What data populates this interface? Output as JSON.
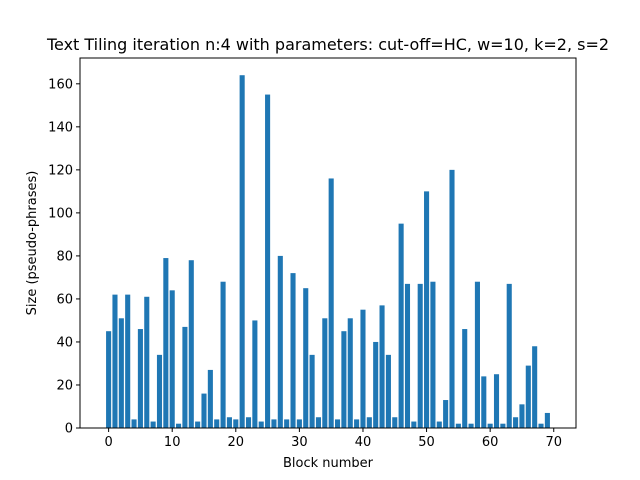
{
  "chart_data": {
    "type": "bar",
    "title": "Text Tiling iteration n:4 with parameters: cut-off=HC, w=10, k=2, s=2",
    "xlabel": "Block number",
    "ylabel": "Size (pseudo-phrases)",
    "xlim": [
      -4.5,
      73.5
    ],
    "ylim": [
      0,
      172
    ],
    "xticks": [
      0,
      10,
      20,
      30,
      40,
      50,
      60,
      70
    ],
    "yticks": [
      0,
      20,
      40,
      60,
      80,
      100,
      120,
      140,
      160
    ],
    "bar_color": "#1f77b4",
    "grid": false,
    "x": [
      0,
      1,
      2,
      3,
      4,
      5,
      6,
      7,
      8,
      9,
      10,
      11,
      12,
      13,
      14,
      15,
      16,
      17,
      18,
      19,
      20,
      21,
      22,
      23,
      24,
      25,
      26,
      27,
      28,
      29,
      30,
      31,
      32,
      33,
      34,
      35,
      36,
      37,
      38,
      39,
      40,
      41,
      42,
      43,
      44,
      45,
      46,
      47,
      48,
      49,
      50,
      51,
      52,
      53,
      54,
      55,
      56,
      57,
      58,
      59,
      60,
      61,
      62,
      63,
      64,
      65,
      66,
      67,
      68,
      69
    ],
    "values": [
      45,
      62,
      51,
      62,
      4,
      46,
      61,
      3,
      34,
      79,
      64,
      2,
      47,
      78,
      3,
      16,
      27,
      4,
      68,
      5,
      4,
      164,
      5,
      50,
      3,
      155,
      4,
      80,
      4,
      72,
      4,
      65,
      34,
      5,
      51,
      116,
      4,
      45,
      51,
      4,
      55,
      5,
      40,
      57,
      34,
      5,
      95,
      67,
      3,
      67,
      110,
      68,
      3,
      13,
      120,
      2,
      46,
      2,
      68,
      24,
      2,
      25,
      2,
      67,
      5,
      11,
      29,
      38,
      2,
      7
    ]
  }
}
